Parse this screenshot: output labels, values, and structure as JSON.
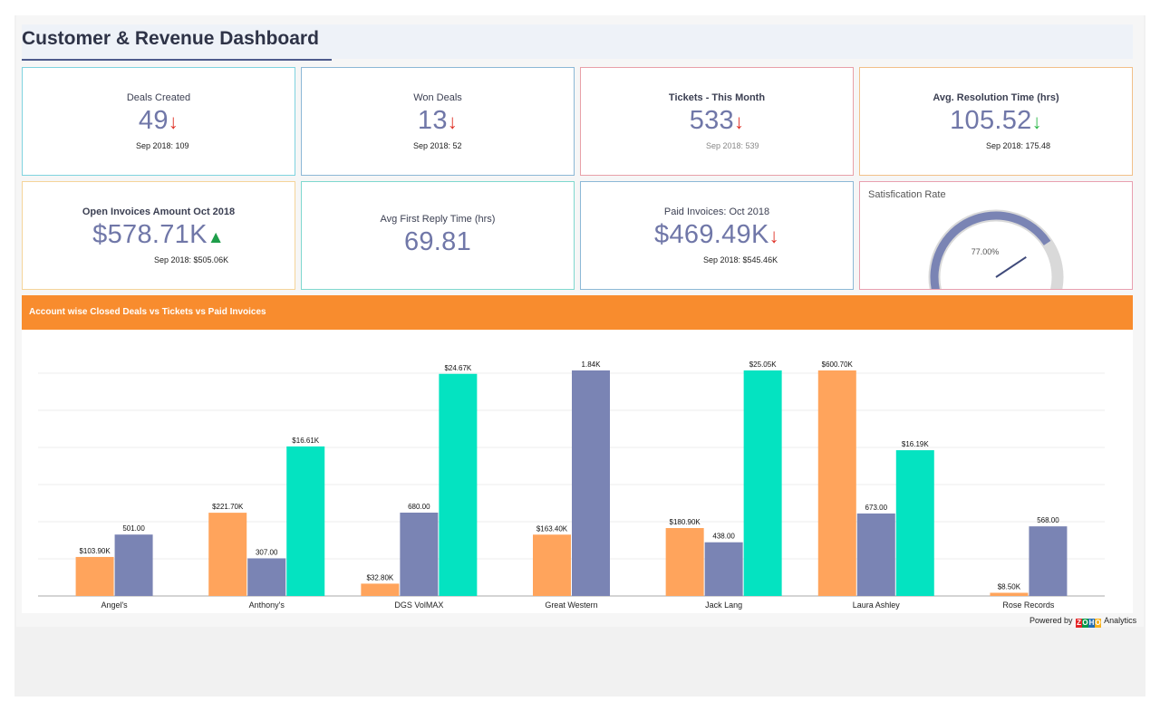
{
  "dashboard": {
    "title": "Customer & Revenue Dashboard"
  },
  "kpis": [
    {
      "label": "Deals Created",
      "value": "49",
      "trend": "↓",
      "trend_color": "#e0352b",
      "sub": "Sep 2018: 109",
      "border": "#7fd3df"
    },
    {
      "label": "Won Deals",
      "value": "13",
      "trend": "↓",
      "trend_color": "#e0352b",
      "sub": "Sep 2018: 52",
      "border": "#8cb8d6"
    },
    {
      "label": "Tickets - This Month",
      "value": "533",
      "trend": "↓",
      "trend_color": "#e0352b",
      "sub": "Sep 2018: 539",
      "border": "#e8a0a8"
    },
    {
      "label": "Avg. Resolution Time (hrs)",
      "value": "105.52",
      "trend": "↓",
      "trend_color": "#2eb84a",
      "sub": "Sep 2018: 175.48",
      "border": "#f2c089"
    },
    {
      "label": "Open Invoices Amount Oct 2018",
      "value": "$578.71K",
      "trend": "▲",
      "trend_color": "#1e9e4a",
      "sub": "Sep 2018: $505.06K",
      "border": "#f5d49a"
    },
    {
      "label": "Avg First Reply Time (hrs)",
      "value": "69.81",
      "trend": "",
      "trend_color": "#e0352b",
      "sub": "",
      "border": "#7fd8cf"
    },
    {
      "label": "Paid Invoices: Oct 2018",
      "value": "$469.49K",
      "trend": "↓",
      "trend_color": "#e0352b",
      "sub": "Sep 2018: $545.46K",
      "border": "#8cb8d6"
    },
    {
      "label": "Satisfication Rate",
      "value": "77.00%",
      "border": "#e8a0b0"
    }
  ],
  "gauge": {
    "percent": 77,
    "fill_color": "#7a84b4",
    "track_color": "#d9d9d9"
  },
  "chart_section": {
    "title": "Account wise Closed Deals vs Tickets vs Paid Invoices"
  },
  "footer": {
    "powered_by": "Powered by",
    "analytics": "Analytics",
    "logo_letters": [
      "Z",
      "O",
      "H",
      "O"
    ]
  },
  "chart_data": {
    "type": "bar",
    "categories": [
      "Angel's",
      "Anthony's",
      "DGS VolMAX",
      "Great Western",
      "Jack Lang",
      "Laura Ashley",
      "Rose Records"
    ],
    "series": [
      {
        "color": "#ffa45c",
        "values": [
          103.9,
          221.7,
          32.8,
          163.4,
          180.9,
          600.7,
          8.5
        ],
        "labels": [
          "$103.90K",
          "$221.70K",
          "$32.80K",
          "$163.40K",
          "$180.90K",
          "$600.70K",
          "$8.50K"
        ]
      },
      {
        "color": "#7a84b4",
        "values": [
          501,
          307,
          680,
          1840,
          438,
          673,
          568
        ],
        "labels": [
          "501.00",
          "307.00",
          "680.00",
          "1.84K",
          "438.00",
          "673.00",
          "568.00"
        ]
      },
      {
        "color": "#04e3c1",
        "values": [
          null,
          16.61,
          24.67,
          null,
          25.05,
          16.19,
          null
        ],
        "labels": [
          "",
          "$16.61K",
          "$24.67K",
          "",
          "$25.05K",
          "$16.19K",
          ""
        ]
      }
    ],
    "series_max": [
      600.7,
      1840,
      25.05
    ],
    "grid": true,
    "legend": "none"
  }
}
